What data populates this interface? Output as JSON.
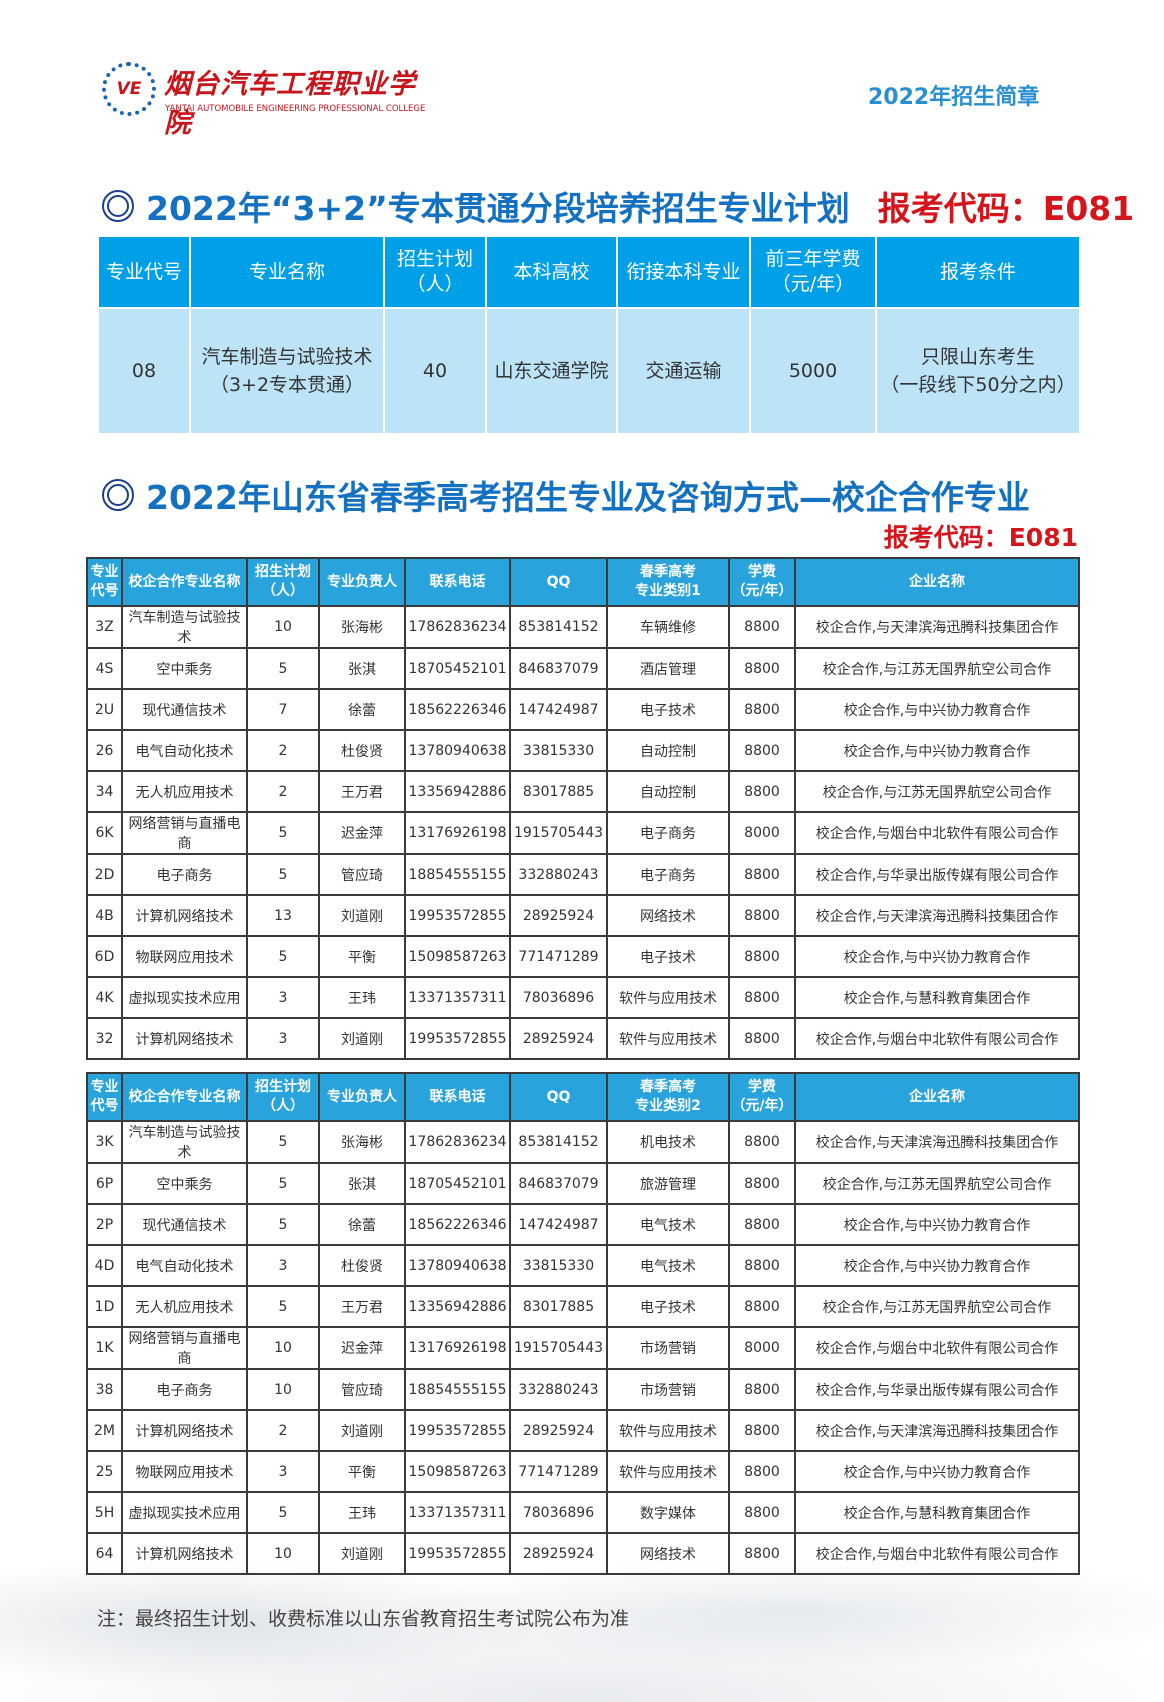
{
  "header": {
    "logo_cn": "烟台汽车工程职业学院",
    "logo_en": "YANTAI AUTOMOBILE ENGINEERING PROFESSIONAL COLLEGE",
    "logo_mark": "VE",
    "brochure_title": "2022年招生简章"
  },
  "section1": {
    "title": "2022年“3+2”专本贯通分段培养招生专业计划",
    "exam_code": "报考代码：E081",
    "columns": [
      "专业代号",
      "专业名称",
      "招生计划\n（人）",
      "本科高校",
      "衔接本科专业",
      "前三年学费\n（元/年）",
      "报考条件"
    ],
    "rows": [
      [
        "08",
        "汽车制造与试验技术\n（3+2专本贯通）",
        "40",
        "山东交通学院",
        "交通运输",
        "5000",
        "只限山东考生\n（一段线下50分之内）"
      ]
    ]
  },
  "section2": {
    "title": "2022年山东省春季高考招生专业及咨询方式—校企合作专业",
    "exam_code": "报考代码：E081"
  },
  "table_a": {
    "columns": [
      "专业\n代号",
      "校企合作专业名称",
      "招生计划\n（人）",
      "专业负责人",
      "联系电话",
      "QQ",
      "春季高考\n专业类别1",
      "学费\n（元/年）",
      "企业名称"
    ],
    "rows": [
      [
        "3Z",
        "汽车制造与试验技术",
        "10",
        "张海彬",
        "17862836234",
        "853814152",
        "车辆维修",
        "8800",
        "校企合作,与天津滨海迅腾科技集团合作"
      ],
      [
        "4S",
        "空中乘务",
        "5",
        "张淇",
        "18705452101",
        "846837079",
        "酒店管理",
        "8800",
        "校企合作,与江苏无国界航空公司合作"
      ],
      [
        "2U",
        "现代通信技术",
        "7",
        "徐蕾",
        "18562226346",
        "147424987",
        "电子技术",
        "8800",
        "校企合作,与中兴协力教育合作"
      ],
      [
        "26",
        "电气自动化技术",
        "2",
        "杜俊贤",
        "13780940638",
        "33815330",
        "自动控制",
        "8800",
        "校企合作,与中兴协力教育合作"
      ],
      [
        "34",
        "无人机应用技术",
        "2",
        "王万君",
        "13356942886",
        "83017885",
        "自动控制",
        "8800",
        "校企合作,与江苏无国界航空公司合作"
      ],
      [
        "6K",
        "网络营销与直播电商",
        "5",
        "迟金萍",
        "13176926198",
        "1915705443",
        "电子商务",
        "8000",
        "校企合作,与烟台中北软件有限公司合作"
      ],
      [
        "2D",
        "电子商务",
        "5",
        "管应琦",
        "18854555155",
        "332880243",
        "电子商务",
        "8800",
        "校企合作,与华录出版传媒有限公司合作"
      ],
      [
        "4B",
        "计算机网络技术",
        "13",
        "刘道刚",
        "19953572855",
        "28925924",
        "网络技术",
        "8800",
        "校企合作,与天津滨海迅腾科技集团合作"
      ],
      [
        "6D",
        "物联网应用技术",
        "5",
        "平衡",
        "15098587263",
        "771471289",
        "电子技术",
        "8800",
        "校企合作,与中兴协力教育合作"
      ],
      [
        "4K",
        "虚拟现实技术应用",
        "3",
        "王玮",
        "13371357311",
        "78036896",
        "软件与应用技术",
        "8800",
        "校企合作,与慧科教育集团合作"
      ],
      [
        "32",
        "计算机网络技术",
        "3",
        "刘道刚",
        "19953572855",
        "28925924",
        "软件与应用技术",
        "8800",
        "校企合作,与烟台中北软件有限公司合作"
      ]
    ]
  },
  "table_b": {
    "columns": [
      "专业\n代号",
      "校企合作专业名称",
      "招生计划\n（人）",
      "专业负责人",
      "联系电话",
      "QQ",
      "春季高考\n专业类别2",
      "学费\n（元/年）",
      "企业名称"
    ],
    "rows": [
      [
        "3K",
        "汽车制造与试验技术",
        "5",
        "张海彬",
        "17862836234",
        "853814152",
        "机电技术",
        "8800",
        "校企合作,与天津滨海迅腾科技集团合作"
      ],
      [
        "6P",
        "空中乘务",
        "5",
        "张淇",
        "18705452101",
        "846837079",
        "旅游管理",
        "8800",
        "校企合作,与江苏无国界航空公司合作"
      ],
      [
        "2P",
        "现代通信技术",
        "5",
        "徐蕾",
        "18562226346",
        "147424987",
        "电气技术",
        "8800",
        "校企合作,与中兴协力教育合作"
      ],
      [
        "4D",
        "电气自动化技术",
        "3",
        "杜俊贤",
        "13780940638",
        "33815330",
        "电气技术",
        "8800",
        "校企合作,与中兴协力教育合作"
      ],
      [
        "1D",
        "无人机应用技术",
        "5",
        "王万君",
        "13356942886",
        "83017885",
        "电子技术",
        "8800",
        "校企合作,与江苏无国界航空公司合作"
      ],
      [
        "1K",
        "网络营销与直播电商",
        "10",
        "迟金萍",
        "13176926198",
        "1915705443",
        "市场营销",
        "8000",
        "校企合作,与烟台中北软件有限公司合作"
      ],
      [
        "38",
        "电子商务",
        "10",
        "管应琦",
        "18854555155",
        "332880243",
        "市场营销",
        "8800",
        "校企合作,与华录出版传媒有限公司合作"
      ],
      [
        "2M",
        "计算机网络技术",
        "2",
        "刘道刚",
        "19953572855",
        "28925924",
        "软件与应用技术",
        "8800",
        "校企合作,与天津滨海迅腾科技集团合作"
      ],
      [
        "25",
        "物联网应用技术",
        "3",
        "平衡",
        "15098587263",
        "771471289",
        "软件与应用技术",
        "8800",
        "校企合作,与中兴协力教育合作"
      ],
      [
        "5H",
        "虚拟现实技术应用",
        "5",
        "王玮",
        "13371357311",
        "78036896",
        "数字媒体",
        "8800",
        "校企合作,与慧科教育集团合作"
      ],
      [
        "64",
        "计算机网络技术",
        "10",
        "刘道刚",
        "19953572855",
        "28925924",
        "网络技术",
        "8800",
        "校企合作,与烟台中北软件有限公司合作"
      ]
    ]
  },
  "footer": {
    "note": "注：最终招生计划、收费标准以山东省教育招生考试院公布为准"
  },
  "colors": {
    "title_blue": "#1470c0",
    "code_red": "#d4161c",
    "header_blue": "#00a0e9",
    "row_light_blue": "#bde3f7"
  }
}
